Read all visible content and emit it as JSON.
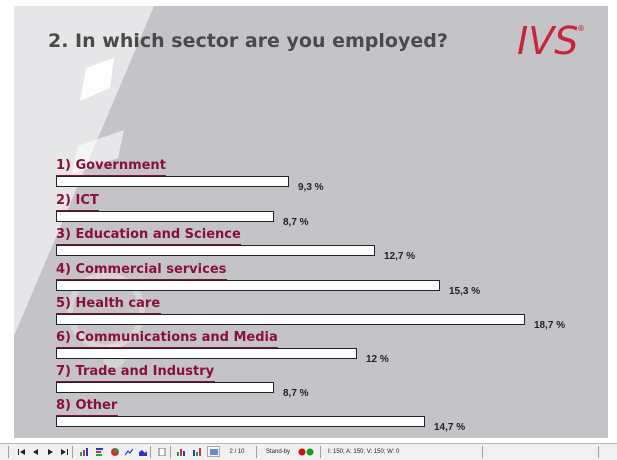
{
  "slide": {
    "title": "2. In which sector are you employed?",
    "logo_text": "IVS",
    "logo_mark": "®"
  },
  "chart_data": {
    "type": "bar",
    "title": "2. In which sector are you employed?",
    "categories": [
      "1) Government",
      "2) ICT",
      "3) Education and Science",
      "4) Commercial services",
      "5) Health care",
      "6) Communications and Media",
      "7) Trade and Industry",
      "8) Other"
    ],
    "values": [
      9.3,
      8.7,
      12.7,
      15.3,
      18.7,
      12,
      8.7,
      14.7
    ],
    "value_labels": [
      "9,3 %",
      "8,7 %",
      "12,7 %",
      "15,3 %",
      "18,7 %",
      "12 %",
      "8,7 %",
      "14,7 %"
    ],
    "orientation": "horizontal"
  },
  "colors": {
    "accent": "#8a1039",
    "background": "#c4c4c8"
  },
  "statusbar": {
    "page": "2 / 10",
    "state": "Stand-by",
    "counts": "I: 150;  A: 150;  V: 150;  W: 0",
    "icons": [
      "first-icon",
      "prev-icon",
      "next-icon",
      "last-icon",
      "chart-icon",
      "bar-icon",
      "pie-icon",
      "line-icon",
      "area-icon",
      "page-icon",
      "chart2-icon",
      "chart3-icon",
      "display-icon",
      "status-icon"
    ]
  }
}
